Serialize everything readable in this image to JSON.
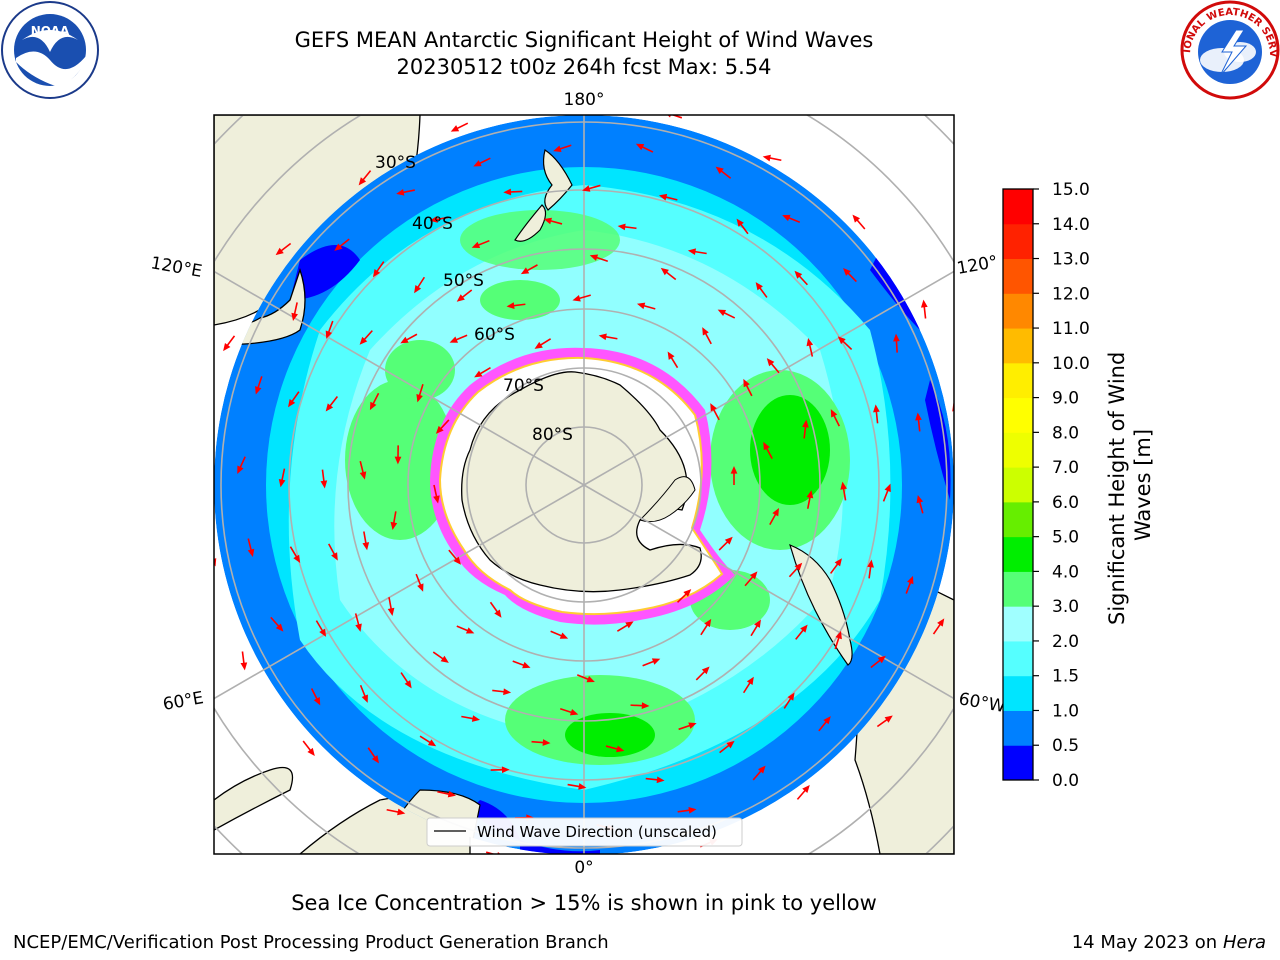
{
  "header": {
    "title_line1": "GEFS MEAN Antarctic Significant Height of Wind Waves",
    "title_line2": "20230512 t00z 264h fcst   Max: 5.54"
  },
  "logos": {
    "noaa_text": "NOAA",
    "nws_text": "NATIONAL WEATHER SERVICE"
  },
  "map": {
    "lat_labels": [
      "30°S",
      "40°S",
      "50°S",
      "60°S",
      "70°S",
      "80°S"
    ],
    "lon_labels": {
      "top": "180°",
      "bottom": "0°",
      "left_upper": "120°E",
      "left_lower": "60°E",
      "right_upper": "120°",
      "right_lower": "60°W"
    },
    "legend_label": "Wind Wave Direction (unscaled)",
    "arrow_color": "#ff0000"
  },
  "colorbar": {
    "label": "Significant Height of Wind Waves [m]",
    "ticks": [
      "0.0",
      "0.5",
      "1.0",
      "1.5",
      "2.0",
      "3.0",
      "4.0",
      "5.0",
      "6.0",
      "7.0",
      "8.0",
      "9.0",
      "10.0",
      "11.0",
      "12.0",
      "13.0",
      "14.0",
      "15.0"
    ],
    "colors": [
      "#0000ff",
      "#0080ff",
      "#00e5ff",
      "#55ffff",
      "#a0ffff",
      "#55ff77",
      "#00ee00",
      "#66ee00",
      "#ccff00",
      "#eeff00",
      "#ffff00",
      "#ffee00",
      "#ffbb00",
      "#ff8800",
      "#ff5500",
      "#ff2200",
      "#ff0000"
    ]
  },
  "footer": {
    "caption": "Sea Ice Concentration > 15% is shown in pink to yellow",
    "credit": "NCEP/EMC/Verification Post Processing Product Generation Branch",
    "date": "14 May 2023 on",
    "machine": "Hera"
  }
}
